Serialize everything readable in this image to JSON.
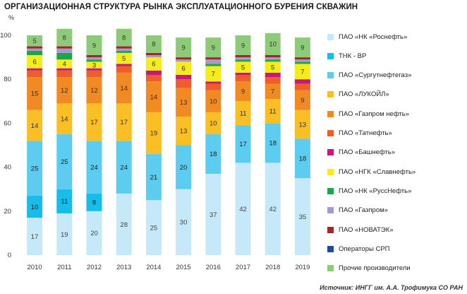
{
  "title": "ОРГАНИЗАЦИОННАЯ СТРУКТУРА РЫНКА ЭКСПЛУАТАЦИОННОГО БУРЕНИЯ СКВАЖИН",
  "source": "Источник: ИНГГ им. А.А. Трофимука СО РАН",
  "chart_data": {
    "type": "bar",
    "stacked": true,
    "categories": [
      "2010",
      "2011",
      "2012",
      "2013",
      "2014",
      "2015",
      "2016",
      "2017",
      "2018",
      "2019"
    ],
    "ylabel": "%",
    "ylim": [
      0,
      100
    ],
    "yticks": [
      0,
      20,
      40,
      60,
      80,
      100
    ],
    "grid": false,
    "legend_position": "right",
    "series": [
      {
        "name": "ПАО «НК «Роснефть»",
        "color": "#c5e9f8",
        "values": [
          17,
          19,
          20,
          28,
          25,
          30,
          37,
          42,
          42,
          35
        ]
      },
      {
        "name": "ТНК - BP",
        "color": "#16bde8",
        "values": [
          10,
          11,
          8,
          0,
          0,
          0,
          0,
          0,
          0,
          0
        ]
      },
      {
        "name": "ПАО «Сургутнефтегаз»",
        "color": "#5ccdf0",
        "values": [
          25,
          25,
          24,
          24,
          21,
          20,
          18,
          17,
          18,
          18
        ]
      },
      {
        "name": "ПАО «ЛУКОЙЛ»",
        "color": "#fbbf26",
        "values": [
          14,
          14,
          17,
          17,
          19,
          13,
          10,
          11,
          11,
          13
        ]
      },
      {
        "name": "ПАО «Газпром нефть»",
        "color": "#f28a24",
        "values": [
          15,
          12,
          12,
          14,
          14,
          13,
          10,
          9,
          7,
          9
        ]
      },
      {
        "name": "ПАО «Татнефть»",
        "color": "#ee5d2a",
        "values": [
          3,
          3,
          3,
          3,
          3,
          4,
          3,
          3,
          3,
          3
        ]
      },
      {
        "name": "ПАО «Башнефть»",
        "color": "#c8177e",
        "values": [
          1,
          1,
          1,
          1,
          2,
          2,
          1,
          1,
          2,
          2
        ]
      },
      {
        "name": "ПАО «НГК «Славнефть»",
        "color": "#f5ec1c",
        "values": [
          6,
          4,
          3,
          5,
          6,
          6,
          7,
          5,
          5,
          7
        ]
      },
      {
        "name": "ПАО «НК «РуссНефть»",
        "color": "#1aa64a",
        "values": [
          2,
          3,
          1,
          1,
          0,
          0,
          1,
          1,
          1,
          1
        ]
      },
      {
        "name": "ПАО «Газпром»",
        "color": "#a79acb",
        "values": [
          1,
          2,
          1,
          1,
          1,
          1,
          2,
          1,
          1,
          1
        ]
      },
      {
        "name": "ПАО «НОВАТЭК»",
        "color": "#a3262a",
        "values": [
          1,
          1,
          1,
          1,
          1,
          1,
          1,
          1,
          1,
          1
        ]
      },
      {
        "name": "Операторы СРП",
        "color": "#1f4b99",
        "values": [
          0,
          0,
          0,
          0,
          0,
          0,
          0,
          0,
          0,
          0
        ]
      },
      {
        "name": "Прочие производители",
        "color": "#8ecb78",
        "values": [
          5,
          8,
          9,
          8,
          8,
          9,
          9,
          9,
          10,
          9
        ]
      }
    ],
    "labeled_series": [
      0,
      1,
      2,
      3,
      4,
      7,
      12
    ],
    "label_colors": {
      "0": "#444444",
      "1": "#1e1e1e",
      "2": "#1e1e1e",
      "3": "#333333",
      "4": "#333333",
      "7": "#333333",
      "12": "#333333"
    }
  }
}
